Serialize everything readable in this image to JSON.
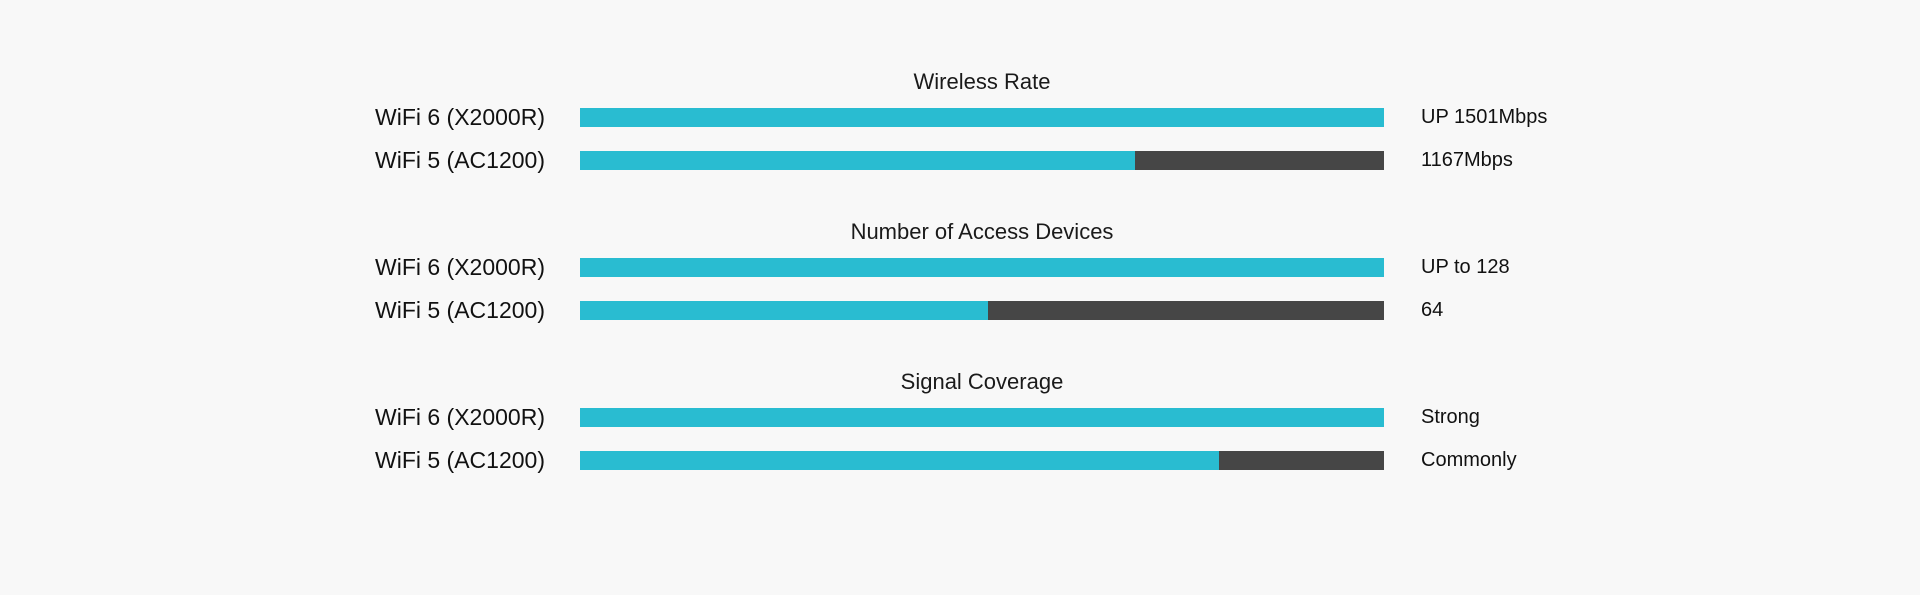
{
  "colors": {
    "background": "#f8f8f8",
    "fill": "#29bcd1",
    "track": "#464646",
    "text": "#111111"
  },
  "chart_data": [
    {
      "type": "bar",
      "orientation": "horizontal",
      "title": "Wireless Rate",
      "categories": [
        "WiFi 6 (X2000R)",
        "WiFi 5 (AC1200)"
      ],
      "value_labels": [
        "UP 1501Mbps",
        "1167Mbps"
      ],
      "fill_fractions": [
        1.0,
        0.69
      ]
    },
    {
      "type": "bar",
      "orientation": "horizontal",
      "title": "Number of Access Devices",
      "categories": [
        "WiFi 6 (X2000R)",
        "WiFi 5 (AC1200)"
      ],
      "value_labels": [
        "UP to 128",
        "64"
      ],
      "fill_fractions": [
        1.0,
        0.508
      ]
    },
    {
      "type": "bar",
      "orientation": "horizontal",
      "title": "Signal Coverage",
      "categories": [
        "WiFi 6 (X2000R)",
        "WiFi 5 (AC1200)"
      ],
      "value_labels": [
        "Strong",
        "Commonly"
      ],
      "fill_fractions": [
        1.0,
        0.795
      ]
    }
  ]
}
